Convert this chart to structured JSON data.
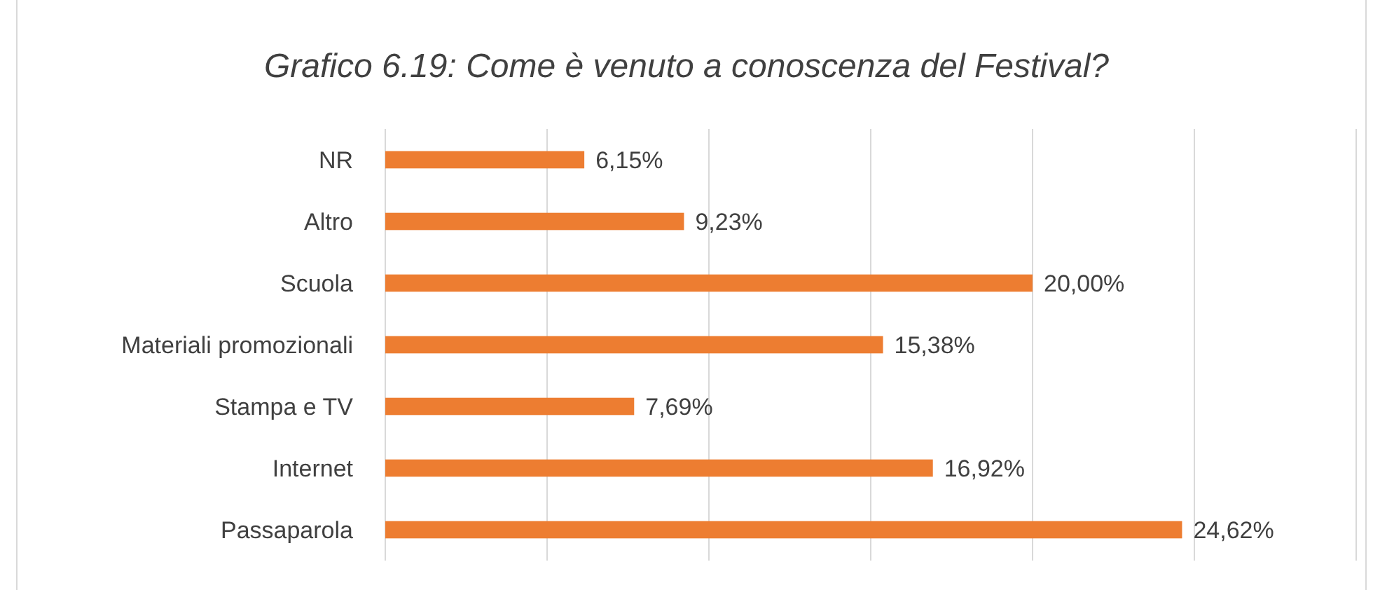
{
  "chart_data": {
    "type": "bar",
    "orientation": "horizontal",
    "title": "Grafico 6.19: Come è venuto a conoscenza del Festival?",
    "categories": [
      "NR",
      "Altro",
      "Scuola",
      "Materiali promozionali",
      "Stampa e TV",
      "Internet",
      "Passaparola"
    ],
    "values": [
      6.15,
      9.23,
      20.0,
      15.38,
      7.69,
      16.92,
      24.62
    ],
    "value_labels": [
      "6,15%",
      "9,23%",
      "20,00%",
      "15,38%",
      "7,69%",
      "16,92%",
      "24,62%"
    ],
    "color": "#ed7d31",
    "xlim": [
      0,
      30
    ],
    "xticks": [
      {
        "value": 0,
        "label": null
      },
      {
        "value": 5,
        "label": null
      },
      {
        "value": 10,
        "label": null
      },
      {
        "value": 15,
        "label": null
      },
      {
        "value": 20,
        "label": null
      },
      {
        "value": 25,
        "label": null
      },
      {
        "value": 30,
        "label": null
      }
    ],
    "tick_labels": "y",
    "grid": "x"
  }
}
